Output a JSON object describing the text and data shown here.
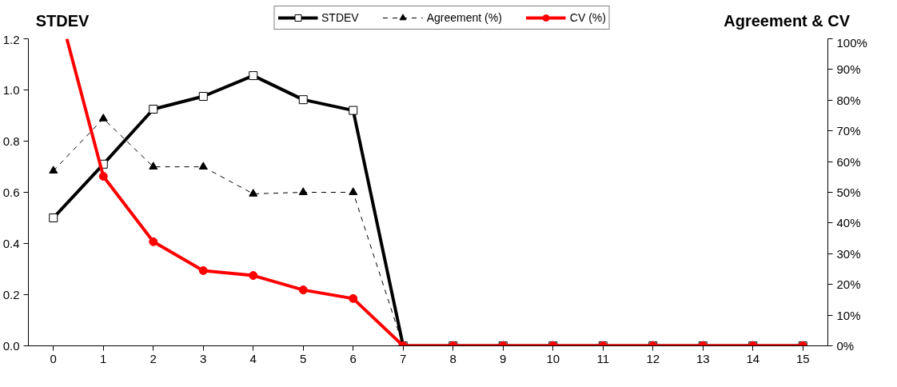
{
  "chart_data": {
    "type": "line",
    "xlabel": null,
    "ylabel": "STDEV",
    "y2label": "Agreement & CV",
    "x": [
      0,
      1,
      2,
      3,
      4,
      5,
      6,
      7,
      8,
      9,
      10,
      11,
      12,
      13,
      14,
      15
    ],
    "series": [
      {
        "name": "STDEV",
        "color": "#000000",
        "marker": "square",
        "line_style": "solid",
        "values": [
          0.5,
          0.71,
          0.925,
          0.975,
          1.056,
          0.962,
          0.92,
          0,
          0,
          0,
          0,
          0,
          0,
          0,
          0,
          0
        ]
      },
      {
        "name": "Agreement (%)",
        "color": "#000000",
        "marker": "triangle",
        "line_style": "dashed",
        "axis": "y2",
        "values": [
          57,
          74,
          58.3,
          58.3,
          49.5,
          50,
          50,
          0,
          0,
          0,
          0,
          0,
          0,
          0,
          0,
          0
        ]
      },
      {
        "name": "CV (%)",
        "color": "#ff0000",
        "marker": "circle",
        "line_style": "solid",
        "axis": "y2",
        "x": [
          0.27,
          1,
          2,
          3,
          4,
          5,
          6,
          7,
          8,
          9,
          10,
          11,
          12,
          13,
          14,
          15
        ],
        "values": [
          100,
          55.2,
          33.9,
          24.5,
          22.9,
          18.2,
          15.4,
          0,
          0,
          0,
          0,
          0,
          0,
          0,
          0,
          0
        ]
      }
    ],
    "xlim": [
      -0.5,
      15.5
    ],
    "xticks": [
      0,
      1,
      2,
      3,
      4,
      5,
      6,
      7,
      8,
      9,
      10,
      11,
      12,
      13,
      14,
      15
    ],
    "ylim": [
      0,
      1.2
    ],
    "yticks": [
      {
        "value": 0,
        "label": "0.0"
      },
      {
        "value": 0.2,
        "label": "0.2"
      },
      {
        "value": 0.4,
        "label": "0.4"
      },
      {
        "value": 0.6,
        "label": "0.6"
      },
      {
        "value": 0.8,
        "label": "0.8"
      },
      {
        "value": 1,
        "label": "1.0"
      },
      {
        "value": 1.2,
        "label": "1.2"
      }
    ],
    "y2lim": [
      0,
      100
    ],
    "y2ticks": [
      {
        "value": 0,
        "label": "0%"
      },
      {
        "value": 10,
        "label": "10%"
      },
      {
        "value": 20,
        "label": "20%"
      },
      {
        "value": 30,
        "label": "30%"
      },
      {
        "value": 40,
        "label": "40%"
      },
      {
        "value": 50,
        "label": "50%"
      },
      {
        "value": 60,
        "label": "60%"
      },
      {
        "value": 70,
        "label": "70%"
      },
      {
        "value": 80,
        "label": "80%"
      },
      {
        "value": 90,
        "label": "90%"
      },
      {
        "value": 100,
        "label": "100%"
      }
    ],
    "grid": false,
    "legend": "top"
  }
}
